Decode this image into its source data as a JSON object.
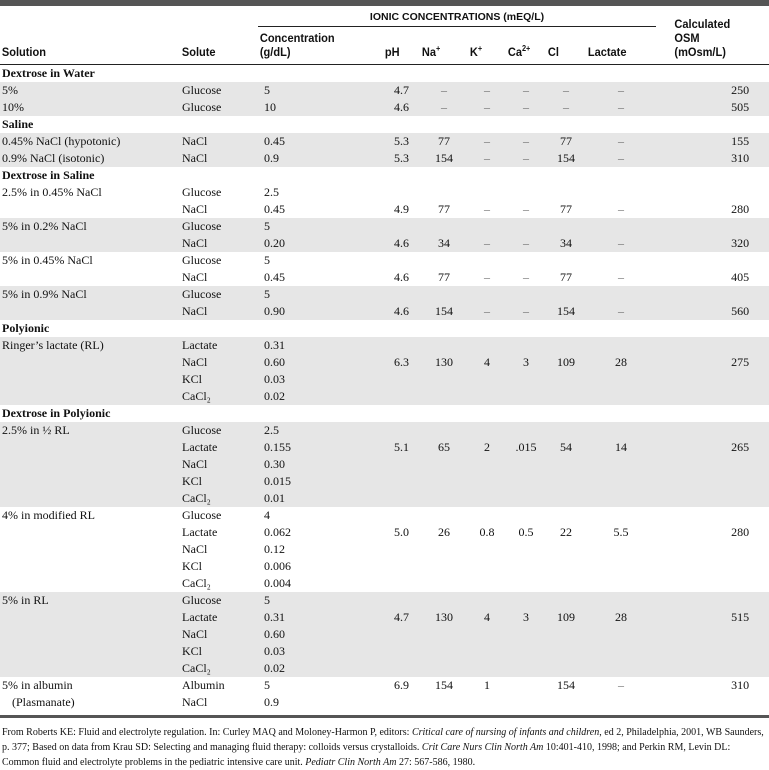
{
  "header": {
    "solution": "Solution",
    "solute": "Solute",
    "ionic_group": "IONIC CONCENTRATIONS (mEQ/L)",
    "concentration": [
      "Concentration",
      "(g/dL)"
    ],
    "ph": "pH",
    "na": {
      "base": "Na",
      "sup": "+"
    },
    "k": {
      "base": "K",
      "sup": "+"
    },
    "ca": {
      "base": "Ca",
      "sup": "2+"
    },
    "cl": "Cl",
    "lactate": "Lactate",
    "osm": [
      "Calculated",
      "OSM",
      "(mOsm/L)"
    ]
  },
  "sections": [
    {
      "title": "Dextrose in Water",
      "entries": [
        {
          "solution": [
            "5%"
          ],
          "shaded": true,
          "lines": [
            [
              "Glucose",
              "5"
            ]
          ],
          "vline": 0,
          "values": [
            "4.7",
            "–",
            "–",
            "–",
            "–",
            "–",
            "250"
          ]
        },
        {
          "solution": [
            "10%"
          ],
          "shaded": true,
          "lines": [
            [
              "Glucose",
              "10"
            ]
          ],
          "vline": 0,
          "values": [
            "4.6",
            "–",
            "–",
            "–",
            "–",
            "–",
            "505"
          ]
        }
      ]
    },
    {
      "title": "Saline",
      "entries": [
        {
          "solution": [
            "0.45% NaCl (hypotonic)"
          ],
          "shaded": true,
          "lines": [
            [
              "NaCl",
              "0.45"
            ]
          ],
          "vline": 0,
          "values": [
            "5.3",
            "77",
            "–",
            "–",
            "77",
            "–",
            "155"
          ]
        },
        {
          "solution": [
            "0.9% NaCl (isotonic)"
          ],
          "shaded": true,
          "lines": [
            [
              "NaCl",
              "0.9"
            ]
          ],
          "vline": 0,
          "values": [
            "5.3",
            "154",
            "–",
            "–",
            "154",
            "–",
            "310"
          ]
        }
      ]
    },
    {
      "title": "Dextrose in Saline",
      "entries": [
        {
          "solution": [
            "2.5% in 0.45% NaCl"
          ],
          "shaded": false,
          "lines": [
            [
              "Glucose",
              "2.5"
            ],
            [
              "NaCl",
              "0.45"
            ]
          ],
          "vline": 1,
          "values": [
            "4.9",
            "77",
            "–",
            "–",
            "77",
            "–",
            "280"
          ]
        },
        {
          "solution": [
            "5% in 0.2% NaCl"
          ],
          "shaded": true,
          "lines": [
            [
              "Glucose",
              "5"
            ],
            [
              "NaCl",
              "0.20"
            ]
          ],
          "vline": 1,
          "values": [
            "4.6",
            "34",
            "–",
            "–",
            "34",
            "–",
            "320"
          ]
        },
        {
          "solution": [
            "5% in 0.45% NaCl"
          ],
          "shaded": false,
          "lines": [
            [
              "Glucose",
              "5"
            ],
            [
              "NaCl",
              "0.45"
            ]
          ],
          "vline": 1,
          "values": [
            "4.6",
            "77",
            "–",
            "–",
            "77",
            "–",
            "405"
          ]
        },
        {
          "solution": [
            "5% in 0.9% NaCl"
          ],
          "shaded": true,
          "lines": [
            [
              "Glucose",
              "5"
            ],
            [
              "NaCl",
              "0.90"
            ]
          ],
          "vline": 1,
          "values": [
            "4.6",
            "154",
            "–",
            "–",
            "154",
            "–",
            "560"
          ]
        }
      ]
    },
    {
      "title": "Polyionic",
      "entries": [
        {
          "solution": [
            "Ringer’s lactate (RL)"
          ],
          "shaded": true,
          "lines": [
            [
              "Lactate",
              "0.31"
            ],
            [
              "NaCl",
              "0.60"
            ],
            [
              "KCl",
              "0.03"
            ],
            [
              "CaCl₂",
              "0.02"
            ]
          ],
          "vline": 1,
          "values": [
            "6.3",
            "130",
            "4",
            "3",
            "109",
            "28",
            "275"
          ]
        }
      ]
    },
    {
      "title": "Dextrose in Polyionic",
      "entries": [
        {
          "solution": [
            "2.5% in ½ RL"
          ],
          "shaded": true,
          "lines": [
            [
              "Glucose",
              "2.5"
            ],
            [
              "Lactate",
              "0.155"
            ],
            [
              "NaCl",
              "0.30"
            ],
            [
              "KCl",
              "0.015"
            ],
            [
              "CaCl₂",
              "0.01"
            ]
          ],
          "vline": 1,
          "values": [
            "5.1",
            "65",
            "2",
            ".015",
            "54",
            "14",
            "265"
          ]
        },
        {
          "solution": [
            "4% in modified RL"
          ],
          "shaded": false,
          "lines": [
            [
              "Glucose",
              "4"
            ],
            [
              "Lactate",
              "0.062"
            ],
            [
              "NaCl",
              "0.12"
            ],
            [
              "KCl",
              "0.006"
            ],
            [
              "CaCl₂",
              "0.004"
            ]
          ],
          "vline": 1,
          "values": [
            "5.0",
            "26",
            "0.8",
            "0.5",
            "22",
            "5.5",
            "280"
          ]
        },
        {
          "solution": [
            "5% in RL"
          ],
          "shaded": true,
          "lines": [
            [
              "Glucose",
              "5"
            ],
            [
              "Lactate",
              "0.31"
            ],
            [
              "NaCl",
              "0.60"
            ],
            [
              "KCl",
              "0.03"
            ],
            [
              "CaCl₂",
              "0.02"
            ]
          ],
          "vline": 1,
          "values": [
            "4.7",
            "130",
            "4",
            "3",
            "109",
            "28",
            "515"
          ]
        },
        {
          "solution": [
            "5% in albumin",
            "(Plasmanate)"
          ],
          "shaded": false,
          "lines": [
            [
              "Albumin",
              "5"
            ],
            [
              "NaCl",
              "0.9"
            ]
          ],
          "vline": 0,
          "values": [
            "6.9",
            "154",
            "1",
            "",
            "154",
            "–",
            "310"
          ]
        }
      ]
    }
  ],
  "footnote": {
    "p1": "From Roberts KE: Fluid and electrolyte regulation. In: Curley MAQ and Moloney-Harmon P, editors: ",
    "i1": "Critical care of nursing of infants and children",
    "p2": ", ed 2, Philadelphia, 2001, WB Saunders, p. 377; Based on data from Krau SD: Selecting and managing fluid therapy: colloids versus crystalloids. ",
    "i2": "Crit Care Nurs Clin North Am",
    "p3": " 10:401-410, 1998; and Perkin RM, Levin DL: Common fluid and electrolyte problems in the pediatric intensive care unit. ",
    "i3": "Pediatr Clin North Am",
    "p4": " 27: 567-586, 1980."
  }
}
